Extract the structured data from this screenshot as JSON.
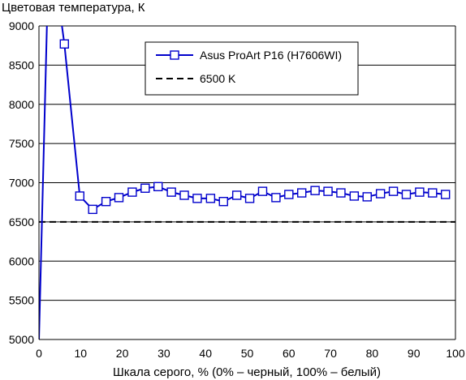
{
  "chart_data": {
    "type": "line",
    "title": "",
    "ylabel": "Цветовая температура, К",
    "xlabel": "Шкала серого, % (0% – черный, 100% – белый)",
    "xlim": [
      0,
      100
    ],
    "ylim": [
      5000,
      9000
    ],
    "x_ticks": [
      "0",
      "10",
      "20",
      "30",
      "40",
      "50",
      "60",
      "70",
      "80",
      "90",
      "100"
    ],
    "y_ticks": [
      "5000",
      "5500",
      "6000",
      "6500",
      "7000",
      "7500",
      "8000",
      "8500",
      "9000"
    ],
    "grid": "horizontal",
    "legend_position": "top-right",
    "series": [
      {
        "name": "Asus ProArt P16 (H7606WI)",
        "color": "#0000cc",
        "marker": "open-square",
        "line_style": "solid",
        "points": [
          [
            0,
            5000
          ],
          [
            2,
            9200
          ],
          [
            4,
            9600
          ],
          [
            6.1,
            8770
          ],
          [
            9.8,
            6830
          ],
          [
            12.9,
            6660
          ],
          [
            16.1,
            6760
          ],
          [
            19.2,
            6810
          ],
          [
            22.4,
            6880
          ],
          [
            25.5,
            6930
          ],
          [
            28.6,
            6950
          ],
          [
            31.8,
            6880
          ],
          [
            34.9,
            6840
          ],
          [
            38,
            6800
          ],
          [
            41.2,
            6800
          ],
          [
            44.3,
            6760
          ],
          [
            47.5,
            6840
          ],
          [
            50.6,
            6800
          ],
          [
            53.7,
            6890
          ],
          [
            56.9,
            6810
          ],
          [
            60,
            6850
          ],
          [
            63.1,
            6870
          ],
          [
            66.3,
            6900
          ],
          [
            69.4,
            6890
          ],
          [
            72.5,
            6870
          ],
          [
            75.7,
            6830
          ],
          [
            78.8,
            6820
          ],
          [
            82,
            6860
          ],
          [
            85.1,
            6890
          ],
          [
            88.2,
            6850
          ],
          [
            91.4,
            6880
          ],
          [
            94.5,
            6870
          ],
          [
            97.6,
            6850
          ]
        ],
        "markers_from_index": 3
      },
      {
        "name": "6500 K",
        "color": "#000000",
        "line_style": "dashed",
        "points": [
          [
            0,
            6500
          ],
          [
            100,
            6500
          ]
        ]
      }
    ]
  }
}
